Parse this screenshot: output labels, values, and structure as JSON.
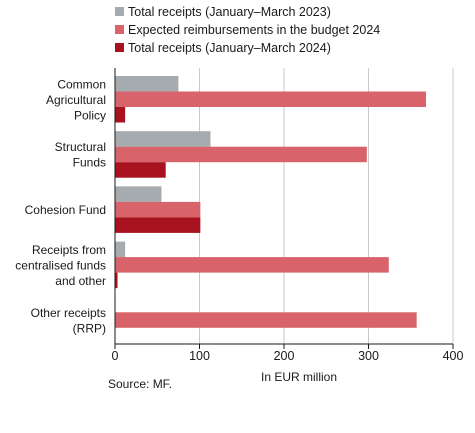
{
  "chart_data": {
    "type": "bar",
    "orientation": "horizontal",
    "categories": [
      [
        "Common",
        "Agricultural",
        "Policy"
      ],
      [
        "Structural",
        "Funds"
      ],
      [
        "Cohesion Fund"
      ],
      [
        "Receipts from",
        "centralised funds",
        "and other"
      ],
      [
        "Other receipts",
        "(RRP)"
      ]
    ],
    "series": [
      {
        "name": "Total receipts (January–March 2023)",
        "color": "#a6abb0",
        "values": [
          75,
          113,
          55,
          12,
          null
        ]
      },
      {
        "name": "Expected reimbursements in the budget 2024",
        "color": "#d9636a",
        "values": [
          368,
          298,
          101,
          324,
          357
        ]
      },
      {
        "name": "Total receipts (January–March 2024)",
        "color": "#a8121f",
        "values": [
          12,
          60,
          101,
          3,
          null
        ]
      }
    ],
    "xlim": [
      0,
      400
    ],
    "xticks": [
      "0",
      "100",
      "200",
      "300",
      "400"
    ],
    "xlabel": "In EUR million",
    "legend_position": "top",
    "grid": "vertical",
    "grid_color": "#c8c8c8"
  },
  "source": "Source: MF."
}
